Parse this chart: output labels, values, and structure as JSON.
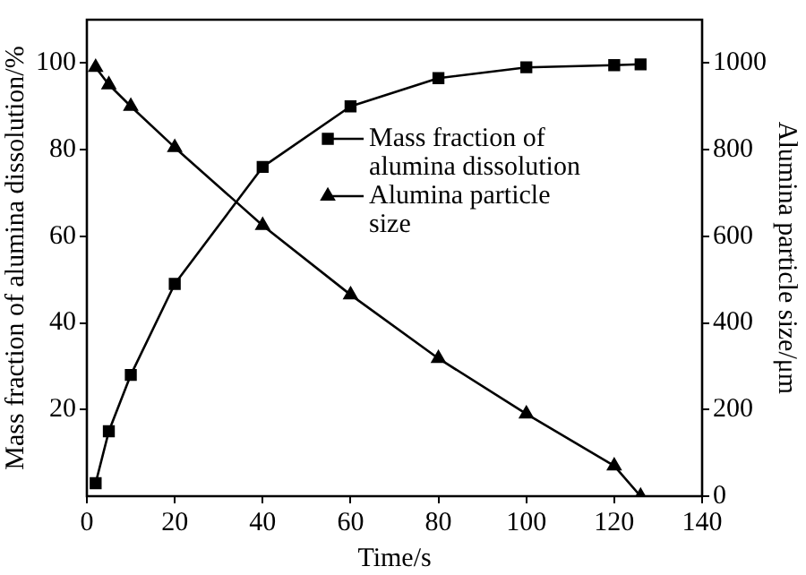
{
  "chart_data": {
    "type": "line",
    "xlabel": "Time/s",
    "ylabel": "Mass fraction of alumina dissolution/%",
    "y2label": "Alumina particle size/μm",
    "x": [
      2,
      5,
      10,
      20,
      40,
      60,
      80,
      100,
      120,
      126
    ],
    "xlim": [
      0,
      140
    ],
    "xticks": [
      0,
      20,
      40,
      60,
      80,
      100,
      120,
      140
    ],
    "ylim": [
      0,
      110
    ],
    "yticks": [
      20,
      40,
      60,
      80,
      100
    ],
    "y2lim": [
      0,
      1100
    ],
    "y2ticks": [
      0,
      200,
      400,
      600,
      800,
      1000
    ],
    "grid": false,
    "legend": "right",
    "line_style": "solid",
    "series": [
      {
        "name": "Mass fraction of alumina dissolution",
        "color": "#000000",
        "marker": "square",
        "values": [
          3,
          15,
          28,
          49,
          76,
          90,
          96.5,
          99,
          99.5,
          99.7
        ]
      },
      {
        "name": "Alumina particle size",
        "color": "#000000",
        "marker": "triangle",
        "axis": "y2",
        "values": [
          990,
          950,
          900,
          805,
          625,
          465,
          318,
          190,
          70,
          0
        ]
      }
    ]
  }
}
